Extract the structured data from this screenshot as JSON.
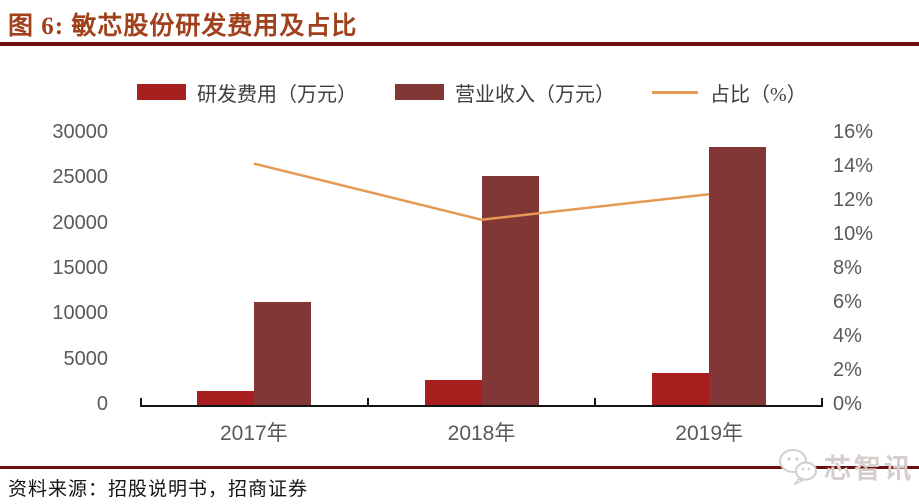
{
  "figure": {
    "title": "图 6:  敏芯股份研发费用及占比",
    "source": "资料来源：招股说明书，招商证券",
    "watermark": "芯智讯"
  },
  "colors": {
    "title_text": "#A0401C",
    "header_rule": "#6E0E0E",
    "rd_bar": "#A81E1E",
    "revenue_bar": "#823737",
    "ratio_line": "#E49A54",
    "axis_text": "#595959",
    "legend_text": "#3E3E3E",
    "axis_line": "#141414"
  },
  "chart_data": {
    "type": "bar",
    "subtype": "bar+line-combo",
    "categories": [
      "2017年",
      "2018年",
      "2019年"
    ],
    "series": [
      {
        "name": "研发费用（万元）",
        "type": "bar",
        "axis": "left",
        "color": "#A81E1E",
        "values": [
          1600,
          2800,
          3500
        ]
      },
      {
        "name": "营业收入（万元）",
        "type": "bar",
        "axis": "left",
        "color": "#823737",
        "values": [
          11400,
          25300,
          28500
        ]
      },
      {
        "name": "占比（%）",
        "type": "line",
        "axis": "right",
        "color": "#E49A54",
        "values": [
          14.2,
          10.9,
          12.4
        ]
      }
    ],
    "left_axis": {
      "min": 0,
      "max": 30000,
      "step": 5000,
      "tick_labels": [
        "0",
        "5000",
        "10000",
        "15000",
        "20000",
        "25000",
        "30000"
      ]
    },
    "right_axis": {
      "min": 0,
      "max": 16,
      "step": 2,
      "tick_labels": [
        "0%",
        "2%",
        "4%",
        "6%",
        "8%",
        "10%",
        "12%",
        "14%",
        "16%"
      ]
    },
    "grid": false,
    "legend_position": "top",
    "title": "敏芯股份研发费用及占比"
  }
}
